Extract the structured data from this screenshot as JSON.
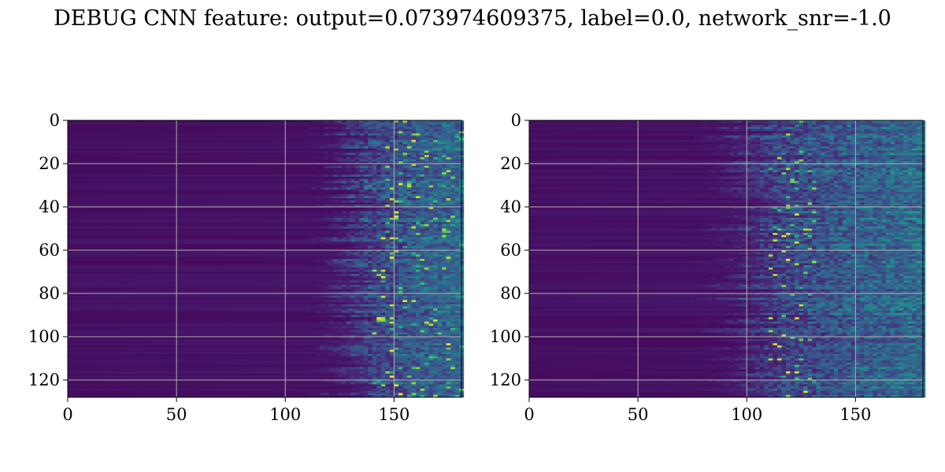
{
  "title": "DEBUG CNN feature: output=0.073974609375, label=0.0, network_snr=-1.0",
  "chart_data": [
    {
      "type": "heatmap",
      "name": "",
      "colormap": "viridis",
      "xlim": [
        0,
        181
      ],
      "ylim": [
        128,
        0
      ],
      "xticks": [
        0,
        50,
        100,
        150
      ],
      "yticks": [
        0,
        20,
        40,
        60,
        80,
        100,
        120
      ],
      "grid": true,
      "grid_color": "#b0b0b0",
      "activation_front_x": 120,
      "peak_x_range": [
        140,
        181
      ],
      "peak_value": 1.0,
      "background_value": 0.04,
      "xlabel": "",
      "ylabel": ""
    },
    {
      "type": "heatmap",
      "name": "",
      "colormap": "viridis",
      "xlim": [
        0,
        181
      ],
      "ylim": [
        128,
        0
      ],
      "xticks": [
        0,
        50,
        100,
        150
      ],
      "yticks": [
        0,
        20,
        40,
        60,
        80,
        100,
        120
      ],
      "grid": true,
      "grid_color": "#b0b0b0",
      "activation_front_x": 85,
      "peak_x_range": [
        110,
        130
      ],
      "peak_value": 0.9,
      "background_value": 0.04,
      "xlabel": "",
      "ylabel": ""
    }
  ]
}
